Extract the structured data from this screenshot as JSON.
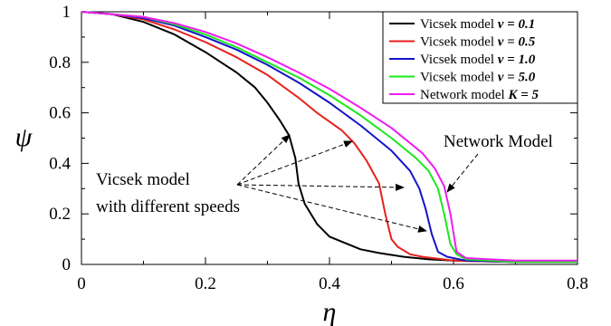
{
  "chart_data": {
    "type": "line",
    "xlabel": "η",
    "ylabel": "ψ",
    "xlim": [
      0,
      0.8
    ],
    "ylim": [
      0,
      1
    ],
    "xticks": [
      0,
      0.2,
      0.4,
      0.6,
      0.8
    ],
    "xtick_labels": [
      "0",
      "0.2",
      "0.4",
      "0.6",
      "0.8"
    ],
    "yticks": [
      0,
      0.2,
      0.4,
      0.6,
      0.8,
      1
    ],
    "ytick_labels": [
      "0",
      "0.2",
      "0.4",
      "0.6",
      "0.8",
      "1"
    ],
    "grid": false,
    "legend_position": "top-right",
    "series": [
      {
        "name": "Vicsek model",
        "param": "v = 0.1",
        "color": "#000000",
        "points": [
          [
            0,
            1
          ],
          [
            0.05,
            0.99
          ],
          [
            0.1,
            0.96
          ],
          [
            0.15,
            0.91
          ],
          [
            0.2,
            0.84
          ],
          [
            0.25,
            0.76
          ],
          [
            0.28,
            0.7
          ],
          [
            0.3,
            0.64
          ],
          [
            0.32,
            0.57
          ],
          [
            0.335,
            0.51
          ],
          [
            0.345,
            0.42
          ],
          [
            0.35,
            0.32
          ],
          [
            0.36,
            0.24
          ],
          [
            0.38,
            0.16
          ],
          [
            0.4,
            0.11
          ],
          [
            0.42,
            0.09
          ],
          [
            0.45,
            0.06
          ],
          [
            0.48,
            0.045
          ],
          [
            0.52,
            0.03
          ],
          [
            0.56,
            0.02
          ],
          [
            0.6,
            0.015
          ],
          [
            0.7,
            0.01
          ],
          [
            0.8,
            0.01
          ]
        ]
      },
      {
        "name": "Vicsek model",
        "param": "v = 0.5",
        "color": "#e8201c",
        "points": [
          [
            0,
            1
          ],
          [
            0.05,
            0.99
          ],
          [
            0.1,
            0.97
          ],
          [
            0.15,
            0.93
          ],
          [
            0.2,
            0.88
          ],
          [
            0.25,
            0.82
          ],
          [
            0.3,
            0.75
          ],
          [
            0.35,
            0.66
          ],
          [
            0.38,
            0.6
          ],
          [
            0.42,
            0.53
          ],
          [
            0.44,
            0.48
          ],
          [
            0.46,
            0.41
          ],
          [
            0.48,
            0.32
          ],
          [
            0.49,
            0.2
          ],
          [
            0.5,
            0.1
          ],
          [
            0.51,
            0.07
          ],
          [
            0.53,
            0.04
          ],
          [
            0.55,
            0.03
          ],
          [
            0.6,
            0.015
          ],
          [
            0.7,
            0.01
          ],
          [
            0.8,
            0.01
          ]
        ]
      },
      {
        "name": "Vicsek model",
        "param": "v = 1.0",
        "color": "#1414c8",
        "points": [
          [
            0,
            1
          ],
          [
            0.05,
            0.99
          ],
          [
            0.1,
            0.975
          ],
          [
            0.15,
            0.945
          ],
          [
            0.2,
            0.9
          ],
          [
            0.25,
            0.85
          ],
          [
            0.3,
            0.79
          ],
          [
            0.35,
            0.72
          ],
          [
            0.4,
            0.64
          ],
          [
            0.45,
            0.55
          ],
          [
            0.5,
            0.45
          ],
          [
            0.53,
            0.37
          ],
          [
            0.545,
            0.3
          ],
          [
            0.555,
            0.22
          ],
          [
            0.565,
            0.12
          ],
          [
            0.575,
            0.05
          ],
          [
            0.59,
            0.03
          ],
          [
            0.62,
            0.015
          ],
          [
            0.7,
            0.01
          ],
          [
            0.8,
            0.01
          ]
        ]
      },
      {
        "name": "Vicsek model",
        "param": "v = 5.0",
        "color": "#1ce81c",
        "points": [
          [
            0,
            1
          ],
          [
            0.05,
            0.99
          ],
          [
            0.1,
            0.98
          ],
          [
            0.15,
            0.95
          ],
          [
            0.2,
            0.91
          ],
          [
            0.25,
            0.86
          ],
          [
            0.3,
            0.8
          ],
          [
            0.35,
            0.74
          ],
          [
            0.4,
            0.67
          ],
          [
            0.45,
            0.59
          ],
          [
            0.5,
            0.5
          ],
          [
            0.54,
            0.42
          ],
          [
            0.56,
            0.37
          ],
          [
            0.575,
            0.3
          ],
          [
            0.585,
            0.2
          ],
          [
            0.595,
            0.08
          ],
          [
            0.605,
            0.04
          ],
          [
            0.62,
            0.02
          ],
          [
            0.7,
            0.01
          ],
          [
            0.8,
            0.01
          ]
        ]
      },
      {
        "name": "Network model",
        "param": "K = 5",
        "color": "#f01cf0",
        "points": [
          [
            0,
            1
          ],
          [
            0.05,
            0.99
          ],
          [
            0.1,
            0.98
          ],
          [
            0.15,
            0.955
          ],
          [
            0.2,
            0.92
          ],
          [
            0.25,
            0.875
          ],
          [
            0.3,
            0.82
          ],
          [
            0.35,
            0.76
          ],
          [
            0.4,
            0.695
          ],
          [
            0.45,
            0.62
          ],
          [
            0.5,
            0.54
          ],
          [
            0.55,
            0.44
          ],
          [
            0.57,
            0.38
          ],
          [
            0.585,
            0.31
          ],
          [
            0.595,
            0.2
          ],
          [
            0.605,
            0.05
          ],
          [
            0.62,
            0.025
          ],
          [
            0.7,
            0.015
          ],
          [
            0.8,
            0.015
          ]
        ]
      }
    ],
    "annotations": [
      {
        "text_lines": [
          "Vicsek model",
          "with different speeds"
        ]
      },
      {
        "text_lines": [
          "Network Model"
        ]
      }
    ]
  }
}
